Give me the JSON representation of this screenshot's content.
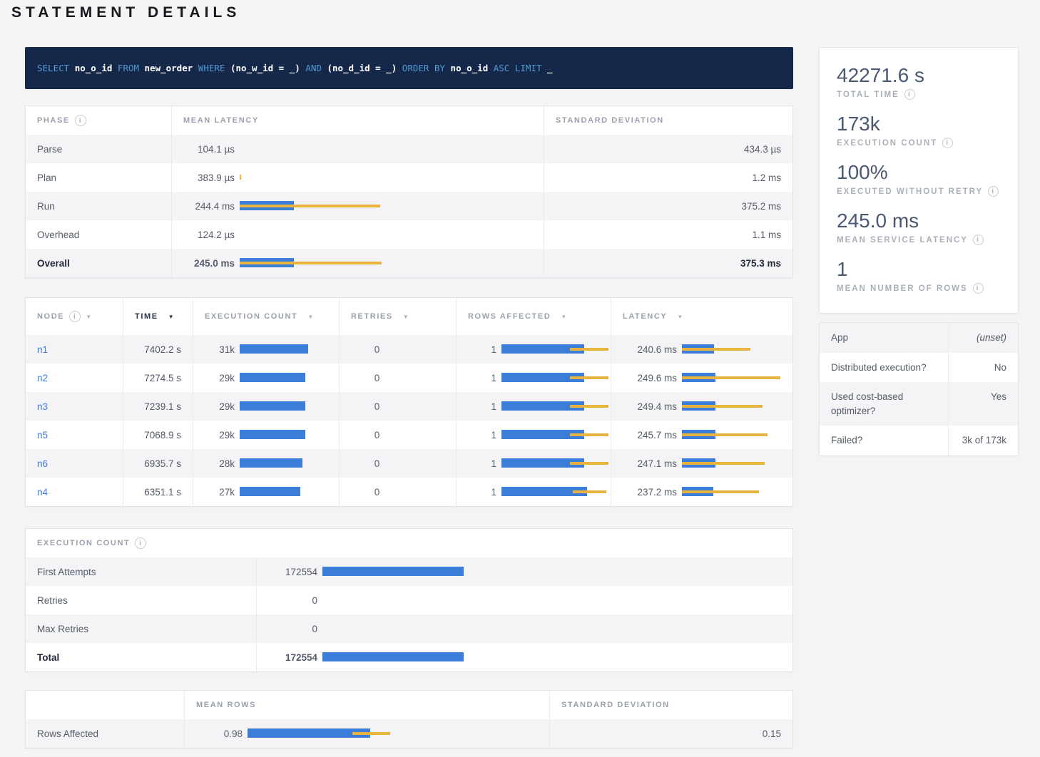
{
  "title": "STATEMENT DETAILS",
  "sql": {
    "tokens": [
      {
        "t": "kw",
        "v": "SELECT "
      },
      {
        "t": "id",
        "v": "no_o_id"
      },
      {
        "t": "kw",
        "v": " FROM "
      },
      {
        "t": "id",
        "v": "new_order"
      },
      {
        "t": "kw",
        "v": " WHERE "
      },
      {
        "t": "id",
        "v": "(no_w_id = _)"
      },
      {
        "t": "kw",
        "v": " AND "
      },
      {
        "t": "id",
        "v": "(no_d_id = _)"
      },
      {
        "t": "kw",
        "v": " ORDER BY "
      },
      {
        "t": "id",
        "v": "no_o_id"
      },
      {
        "t": "kw",
        "v": " ASC LIMIT "
      },
      {
        "t": "id",
        "v": "_"
      }
    ]
  },
  "colors": {
    "bar_blue": "#3b7dd8",
    "bar_yellow": "#e7b43d",
    "sql_bg": "#152849",
    "link": "#3e7ce0"
  },
  "phase_table": {
    "headers": {
      "phase": "PHASE",
      "mean_latency": "MEAN LATENCY",
      "std_dev": "STANDARD DEVIATION"
    },
    "rows": [
      {
        "phase": "Parse",
        "mean": "104.1 µs",
        "bar": 0,
        "dev": null,
        "std": "434.3 µs",
        "bold": false
      },
      {
        "phase": "Plan",
        "mean": "383.9 µs",
        "bar": 0,
        "dev": [
          0,
          2
        ],
        "std": "1.2 ms",
        "bold": false
      },
      {
        "phase": "Run",
        "mean": "244.4 ms",
        "bar": 76,
        "dev": [
          0,
          197
        ],
        "std": "375.2 ms",
        "bold": false
      },
      {
        "phase": "Overhead",
        "mean": "124.2 µs",
        "bar": 0,
        "dev": null,
        "std": "1.1 ms",
        "bold": false
      },
      {
        "phase": "Overall",
        "mean": "245.0 ms",
        "bar": 76,
        "dev": [
          0,
          199
        ],
        "std": "375.3 ms",
        "bold": true
      }
    ]
  },
  "node_table": {
    "headers": [
      {
        "label": "NODE",
        "info": true,
        "arrow": true,
        "sorted": false
      },
      {
        "label": "TIME",
        "info": false,
        "arrow": true,
        "sorted": true
      },
      {
        "label": "EXECUTION COUNT",
        "info": false,
        "arrow": true,
        "sorted": false
      },
      {
        "label": "RETRIES",
        "info": false,
        "arrow": true,
        "sorted": false
      },
      {
        "label": "ROWS AFFECTED",
        "info": false,
        "arrow": true,
        "sorted": false
      },
      {
        "label": "LATENCY",
        "info": false,
        "arrow": true,
        "sorted": false
      }
    ],
    "rows": [
      {
        "node": "n1",
        "time": "7402.2 s",
        "exec": "31k",
        "exec_bar": 96,
        "retries": "0",
        "rows": "1",
        "rows_bar": 116,
        "rows_dev": [
          96,
          150
        ],
        "latency": "240.6 ms",
        "lat_bar": 45,
        "lat_dev": [
          0,
          96
        ]
      },
      {
        "node": "n2",
        "time": "7274.5 s",
        "exec": "29k",
        "exec_bar": 92,
        "retries": "0",
        "rows": "1",
        "rows_bar": 116,
        "rows_dev": [
          96,
          150
        ],
        "latency": "249.6 ms",
        "lat_bar": 47,
        "lat_dev": [
          0,
          138
        ]
      },
      {
        "node": "n3",
        "time": "7239.1 s",
        "exec": "29k",
        "exec_bar": 92,
        "retries": "0",
        "rows": "1",
        "rows_bar": 116,
        "rows_dev": [
          96,
          150
        ],
        "latency": "249.4 ms",
        "lat_bar": 47,
        "lat_dev": [
          0,
          113
        ]
      },
      {
        "node": "n5",
        "time": "7068.9 s",
        "exec": "29k",
        "exec_bar": 92,
        "retries": "0",
        "rows": "1",
        "rows_bar": 116,
        "rows_dev": [
          96,
          150
        ],
        "latency": "245.7 ms",
        "lat_bar": 47,
        "lat_dev": [
          0,
          120
        ]
      },
      {
        "node": "n6",
        "time": "6935.7 s",
        "exec": "28k",
        "exec_bar": 88,
        "retries": "0",
        "rows": "1",
        "rows_bar": 116,
        "rows_dev": [
          96,
          150
        ],
        "latency": "247.1 ms",
        "lat_bar": 47,
        "lat_dev": [
          0,
          116
        ]
      },
      {
        "node": "n4",
        "time": "6351.1 s",
        "exec": "27k",
        "exec_bar": 85,
        "retries": "0",
        "rows": "1",
        "rows_bar": 120,
        "rows_dev": [
          100,
          147
        ],
        "latency": "237.2 ms",
        "lat_bar": 44,
        "lat_dev": [
          0,
          108
        ]
      }
    ]
  },
  "execution_count_table": {
    "header": "EXECUTION COUNT",
    "rows": [
      {
        "label": "First Attempts",
        "value": "172554",
        "bar": 198,
        "bold": false
      },
      {
        "label": "Retries",
        "value": "0",
        "bar": 0,
        "bold": false
      },
      {
        "label": "Max Retries",
        "value": "0",
        "bar": 0,
        "bold": false
      },
      {
        "label": "Total",
        "value": "172554",
        "bar": 198,
        "bold": true
      }
    ]
  },
  "rows_affected_table": {
    "headers": {
      "blank": "",
      "mean_rows": "MEAN ROWS",
      "std_dev": "STANDARD DEVIATION"
    },
    "rows": [
      {
        "label": "Rows Affected",
        "mean": "0.98",
        "bar": 172,
        "dev": [
          147,
          200
        ],
        "std": "0.15"
      }
    ]
  },
  "summary_stats": [
    {
      "value": "42271.6 s",
      "label": "TOTAL TIME"
    },
    {
      "value": "173k",
      "label": "EXECUTION COUNT"
    },
    {
      "value": "100%",
      "label": "EXECUTED WITHOUT RETRY"
    },
    {
      "value": "245.0 ms",
      "label": "MEAN SERVICE LATENCY"
    },
    {
      "value": "1",
      "label": "MEAN NUMBER OF ROWS"
    }
  ],
  "attributes": [
    {
      "label": "App",
      "value": "(unset)",
      "muted": true
    },
    {
      "label": "Distributed execution?",
      "value": "No",
      "muted": false
    },
    {
      "label": "Used cost-based optimizer?",
      "value": "Yes",
      "muted": false
    },
    {
      "label": "Failed?",
      "value": "3k of 173k",
      "muted": false
    }
  ]
}
